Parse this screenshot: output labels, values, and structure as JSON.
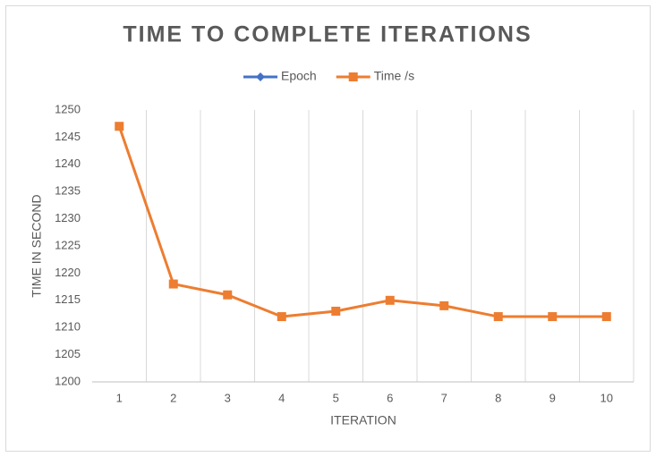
{
  "chart_data": {
    "type": "line",
    "title": "TIME TO COMPLETE ITERATIONS",
    "x_label": "ITERATION",
    "y_label": "TIME IN SECOND",
    "categories": [
      "1",
      "2",
      "3",
      "4",
      "5",
      "6",
      "7",
      "8",
      "9",
      "10"
    ],
    "series": [
      {
        "name": "Epoch",
        "color": "#4472c4",
        "marker": "diamond",
        "values": [
          null,
          null,
          null,
          null,
          null,
          null,
          null,
          null,
          null,
          null
        ]
      },
      {
        "name": "Time /s",
        "color": "#ed7d31",
        "marker": "square",
        "values": [
          1247,
          1218,
          1216,
          1212,
          1213,
          1215,
          1214,
          1212,
          1212,
          1212
        ]
      }
    ],
    "ylim": [
      1200,
      1250
    ],
    "yticks": [
      1200,
      1205,
      1210,
      1215,
      1220,
      1225,
      1230,
      1235,
      1240,
      1245,
      1250
    ],
    "grid": true,
    "legend": "top"
  }
}
